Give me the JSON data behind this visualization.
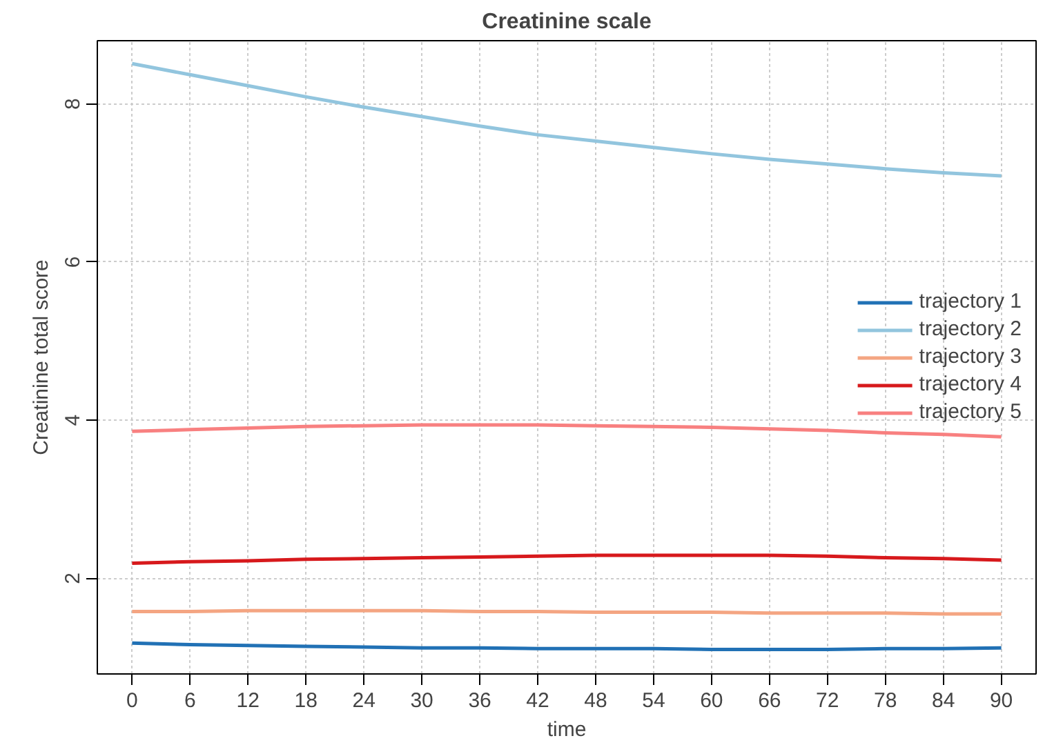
{
  "chart_data": {
    "type": "line",
    "title": "Creatinine scale",
    "xlabel": "time",
    "ylabel": "Creatinine total score",
    "x": [
      0,
      6,
      12,
      18,
      24,
      30,
      36,
      42,
      48,
      54,
      60,
      66,
      72,
      78,
      84,
      90
    ],
    "series": [
      {
        "name": "trajectory 1",
        "color": "#2171b5",
        "values": [
          1.18,
          1.16,
          1.15,
          1.14,
          1.13,
          1.12,
          1.12,
          1.11,
          1.11,
          1.11,
          1.1,
          1.1,
          1.1,
          1.11,
          1.11,
          1.12
        ]
      },
      {
        "name": "trajectory 2",
        "color": "#92c5de",
        "values": [
          8.51,
          8.37,
          8.23,
          8.09,
          7.96,
          7.84,
          7.72,
          7.61,
          7.53,
          7.45,
          7.37,
          7.3,
          7.24,
          7.18,
          7.13,
          7.09
        ]
      },
      {
        "name": "trajectory 3",
        "color": "#f4a582",
        "values": [
          1.58,
          1.58,
          1.59,
          1.59,
          1.59,
          1.59,
          1.58,
          1.58,
          1.57,
          1.57,
          1.57,
          1.56,
          1.56,
          1.56,
          1.55,
          1.55
        ]
      },
      {
        "name": "trajectory 4",
        "color": "#d7191c",
        "values": [
          2.19,
          2.21,
          2.22,
          2.24,
          2.25,
          2.26,
          2.27,
          2.28,
          2.29,
          2.29,
          2.29,
          2.29,
          2.28,
          2.26,
          2.25,
          2.23
        ]
      },
      {
        "name": "trajectory 5",
        "color": "#f88080",
        "values": [
          3.86,
          3.88,
          3.9,
          3.92,
          3.93,
          3.94,
          3.94,
          3.94,
          3.93,
          3.92,
          3.91,
          3.89,
          3.87,
          3.84,
          3.82,
          3.79
        ]
      }
    ],
    "xlim": [
      -3.6,
      93.6
    ],
    "ylim": [
      0.79,
      8.8
    ],
    "xticks": [
      0,
      6,
      12,
      18,
      24,
      30,
      36,
      42,
      48,
      54,
      60,
      66,
      72,
      78,
      84,
      90
    ],
    "yticks": [
      2,
      4,
      6,
      8
    ],
    "grid": true,
    "legend": "right",
    "line_style": "solid"
  }
}
